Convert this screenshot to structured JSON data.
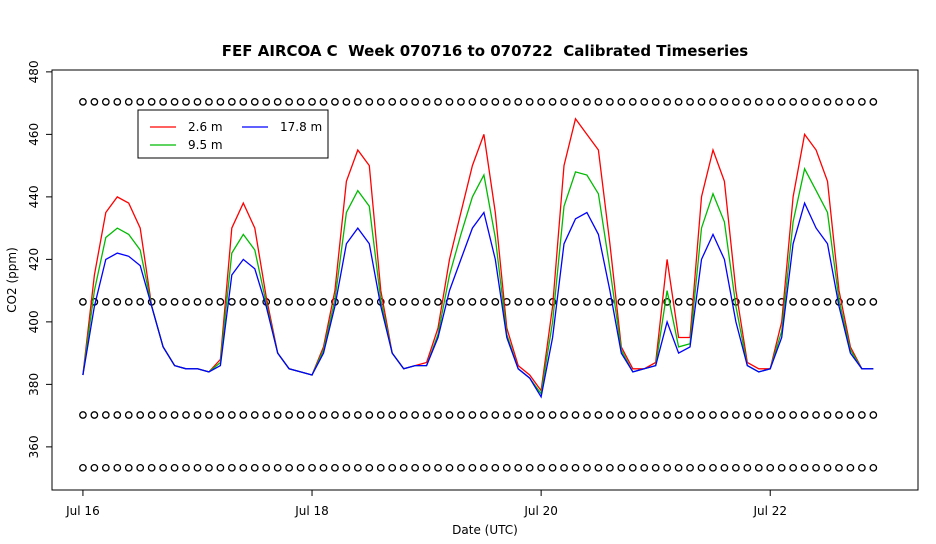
{
  "chart_data": {
    "type": "line",
    "title": "FEF AIRCOA C  Week 070716 to 070722  Calibrated Timeseries",
    "x_label": "Date (UTC)",
    "y_label": "CO2 (ppm)",
    "x": [
      16.0,
      16.1,
      16.2,
      16.3,
      16.4,
      16.5,
      16.6,
      16.7,
      16.8,
      16.9,
      17.0,
      17.1,
      17.2,
      17.3,
      17.4,
      17.5,
      17.6,
      17.7,
      17.8,
      17.9,
      18.0,
      18.1,
      18.2,
      18.3,
      18.4,
      18.5,
      18.6,
      18.7,
      18.8,
      18.9,
      19.0,
      19.1,
      19.2,
      19.3,
      19.4,
      19.5,
      19.6,
      19.7,
      19.8,
      19.9,
      20.0,
      20.1,
      20.2,
      20.3,
      20.4,
      20.5,
      20.6,
      20.7,
      20.8,
      20.9,
      21.0,
      21.1,
      21.2,
      21.3,
      21.4,
      21.5,
      21.6,
      21.7,
      21.8,
      21.9,
      22.0,
      22.1,
      22.2,
      22.3,
      22.4,
      22.5,
      22.6,
      22.7,
      22.8,
      22.9
    ],
    "series": [
      {
        "name": "2.6 m",
        "color": "#ff0000",
        "values": [
          383,
          415,
          435,
          440,
          438,
          430,
          405,
          392,
          386,
          385,
          385,
          384,
          388,
          430,
          438,
          430,
          408,
          390,
          385,
          384,
          383,
          392,
          410,
          445,
          455,
          450,
          410,
          390,
          385,
          386,
          387,
          398,
          420,
          435,
          450,
          460,
          435,
          398,
          386,
          383,
          378,
          405,
          450,
          465,
          460,
          455,
          425,
          392,
          385,
          385,
          387,
          420,
          395,
          395,
          440,
          455,
          445,
          410,
          387,
          385,
          385,
          400,
          440,
          460,
          455,
          445,
          410,
          392,
          385,
          385
        ]
      },
      {
        "name": "9.5 m",
        "color": "#00bb00",
        "values": [
          383,
          410,
          427,
          430,
          428,
          423,
          405,
          392,
          386,
          385,
          385,
          384,
          387,
          422,
          428,
          423,
          406,
          390,
          385,
          384,
          383,
          391,
          407,
          435,
          442,
          437,
          407,
          390,
          385,
          386,
          386,
          396,
          415,
          428,
          440,
          447,
          427,
          396,
          385,
          382,
          377,
          400,
          437,
          448,
          447,
          441,
          417,
          391,
          384,
          385,
          386,
          410,
          392,
          393,
          430,
          441,
          432,
          405,
          386,
          384,
          385,
          397,
          432,
          449,
          442,
          435,
          407,
          391,
          385,
          385
        ]
      },
      {
        "name": "17.8 m",
        "color": "#0000ff",
        "values": [
          383,
          405,
          420,
          422,
          421,
          418,
          405,
          392,
          386,
          385,
          385,
          384,
          386,
          415,
          420,
          417,
          405,
          390,
          385,
          384,
          383,
          390,
          405,
          425,
          430,
          425,
          405,
          390,
          385,
          386,
          386,
          395,
          410,
          420,
          430,
          435,
          420,
          395,
          385,
          382,
          376,
          395,
          425,
          433,
          435,
          428,
          410,
          390,
          384,
          385,
          386,
          400,
          390,
          392,
          420,
          428,
          420,
          400,
          386,
          384,
          385,
          395,
          425,
          438,
          430,
          425,
          405,
          390,
          385,
          385
        ]
      }
    ],
    "reference_levels": [
      470.4,
      406.4,
      370.2,
      353.3
    ],
    "xlim": [
      15.73,
      23.29
    ],
    "ylim": [
      346.2,
      480.6
    ],
    "xticks": [
      {
        "value": 16,
        "label": "Jul 16"
      },
      {
        "value": 18,
        "label": "Jul 18"
      },
      {
        "value": 20,
        "label": "Jul 20"
      },
      {
        "value": 22,
        "label": "Jul 22"
      }
    ],
    "yticks": [
      360,
      380,
      400,
      420,
      440,
      460,
      480
    ],
    "legend": "top-left"
  }
}
